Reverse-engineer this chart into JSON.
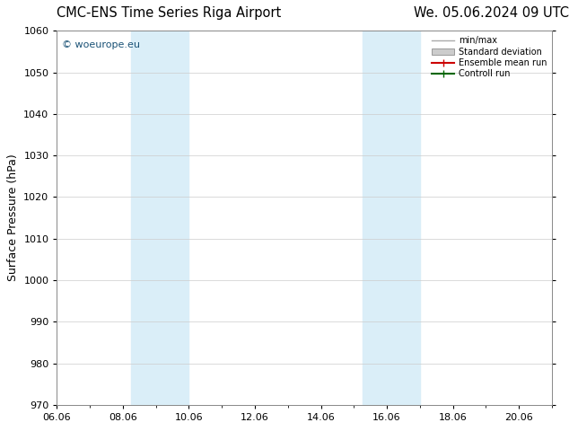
{
  "title_left": "CMC-ENS Time Series Riga Airport",
  "title_right": "We. 05.06.2024 09 UTC",
  "ylabel": "Surface Pressure (hPa)",
  "ylim": [
    970,
    1060
  ],
  "yticks": [
    970,
    980,
    990,
    1000,
    1010,
    1020,
    1030,
    1040,
    1050,
    1060
  ],
  "xstart_day": 6,
  "xend_day": 21,
  "xtick_days": [
    6,
    8,
    10,
    12,
    14,
    16,
    18,
    20
  ],
  "xtick_labels": [
    "06.06",
    "08.06",
    "10.06",
    "12.06",
    "14.06",
    "16.06",
    "18.06",
    "20.06"
  ],
  "shade_bands": [
    {
      "day_start": 8.25,
      "day_end": 10.0
    },
    {
      "day_start": 15.25,
      "day_end": 17.0
    }
  ],
  "shade_color": "#daeef8",
  "watermark": "© woeurope.eu",
  "watermark_color": "#1a5276",
  "bg_color": "#ffffff",
  "legend_entries": [
    {
      "label": "min/max",
      "type": "line",
      "color": "#aaaaaa",
      "lw": 1.2
    },
    {
      "label": "Standard deviation",
      "type": "patch",
      "color": "#cccccc"
    },
    {
      "label": "Ensemble mean run",
      "type": "line",
      "color": "#cc0000",
      "lw": 1.5
    },
    {
      "label": "Controll run",
      "type": "line",
      "color": "#006600",
      "lw": 1.5
    }
  ],
  "grid_color": "#cccccc",
  "title_fontsize": 10.5,
  "axis_fontsize": 9,
  "tick_fontsize": 8
}
